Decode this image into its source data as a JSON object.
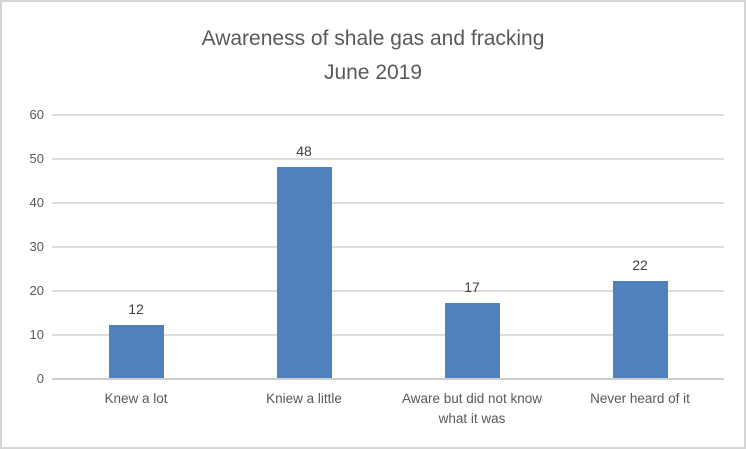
{
  "chart_data": {
    "type": "bar",
    "title": "Awareness of shale gas and fracking",
    "subtitle": "June 2019",
    "categories": [
      "Knew a lot",
      "Kniew a little",
      "Aware but did not know what it was",
      "Never heard of it"
    ],
    "values": [
      12,
      48,
      17,
      22
    ],
    "xlabel": "",
    "ylabel": "",
    "ylim": [
      0,
      60
    ],
    "yticks": [
      0,
      10,
      20,
      30,
      40,
      50,
      60
    ],
    "grid": true,
    "legend": false,
    "data_labels": true
  },
  "colors": {
    "bar": "#4F81BD",
    "gridline": "#DCDCDC",
    "axis_line": "#D0D0D0",
    "title_text": "#595959",
    "axis_text": "#595959",
    "data_label_text": "#404040",
    "border": "#D6D6D6",
    "background": "#FFFFFF"
  }
}
